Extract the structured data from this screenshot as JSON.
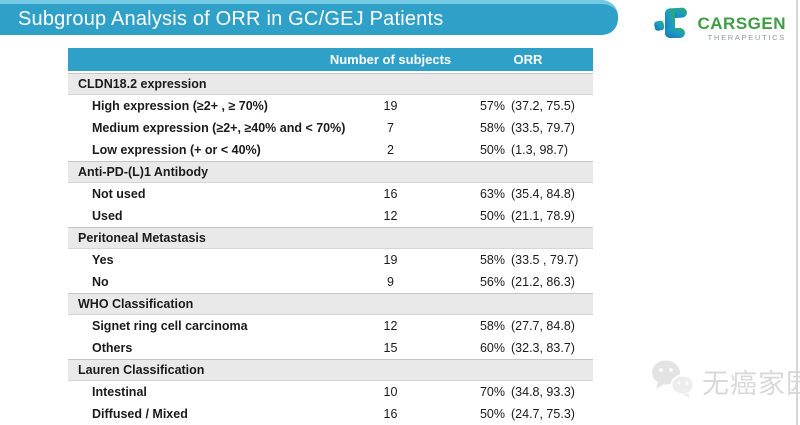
{
  "banner": {
    "title": "Subgroup Analysis of ORR in GC/GEJ Patients"
  },
  "logo": {
    "wordmark": "CARSGEN",
    "subtitle": "THERAPEUTICS"
  },
  "colors": {
    "banner_teal": "#2fa0c8",
    "banner_highlight": "#74c9e3",
    "header_teal": "#2fa0c8",
    "category_row_gray": "#e9e9e9",
    "logo_green": "#3f9e44",
    "logo_subtitle_gray": "#9097a0",
    "table_bottom_border": "#1f1f1f",
    "watermark_gray": "#d9d9d9"
  },
  "table": {
    "columns": {
      "label": "",
      "subjects": "Number of subjects",
      "orr": "ORR"
    },
    "groups": [
      {
        "label": "CLDN18.2 expression",
        "rows": [
          {
            "label": "High expression (≥2+ , ≥ 70%)",
            "subjects": "19",
            "orr_pct": "57%",
            "orr_ci": "(37.2, 75.5)"
          },
          {
            "label": "Medium expression (≥2+,  ≥40% and < 70%)",
            "subjects": "7",
            "orr_pct": "58%",
            "orr_ci": "(33.5, 79.7)"
          },
          {
            "label": "Low expression  (+ or < 40%)",
            "subjects": "2",
            "orr_pct": "50%",
            "orr_ci": "(1.3, 98.7)"
          }
        ]
      },
      {
        "label": "Anti-PD-(L)1 Antibody",
        "rows": [
          {
            "label": "Not used",
            "subjects": "16",
            "orr_pct": "63%",
            "orr_ci": "(35.4, 84.8)"
          },
          {
            "label": "Used",
            "subjects": "12",
            "orr_pct": "50%",
            "orr_ci": "(21.1, 78.9)"
          }
        ]
      },
      {
        "label": "Peritoneal Metastasis",
        "rows": [
          {
            "label": "Yes",
            "subjects": "19",
            "orr_pct": "58%",
            "orr_ci": "(33.5 , 79.7)"
          },
          {
            "label": "No",
            "subjects": "9",
            "orr_pct": "56%",
            "orr_ci": "(21.2, 86.3)"
          }
        ]
      },
      {
        "label": "WHO Classification",
        "rows": [
          {
            "label": "Signet ring cell carcinoma",
            "subjects": "12",
            "orr_pct": "58%",
            "orr_ci": "(27.7, 84.8)"
          },
          {
            "label": "Others",
            "subjects": "15",
            "orr_pct": "60%",
            "orr_ci": "(32.3, 83.7)"
          }
        ]
      },
      {
        "label": "Lauren Classification",
        "rows": [
          {
            "label": "Intestinal",
            "subjects": "10",
            "orr_pct": "70%",
            "orr_ci": "(34.8, 93.3)"
          },
          {
            "label": "Diffused / Mixed",
            "subjects": "16",
            "orr_pct": "50%",
            "orr_ci": "(24.7, 75.3)"
          }
        ]
      }
    ]
  },
  "watermark": {
    "text": "无癌家园"
  }
}
